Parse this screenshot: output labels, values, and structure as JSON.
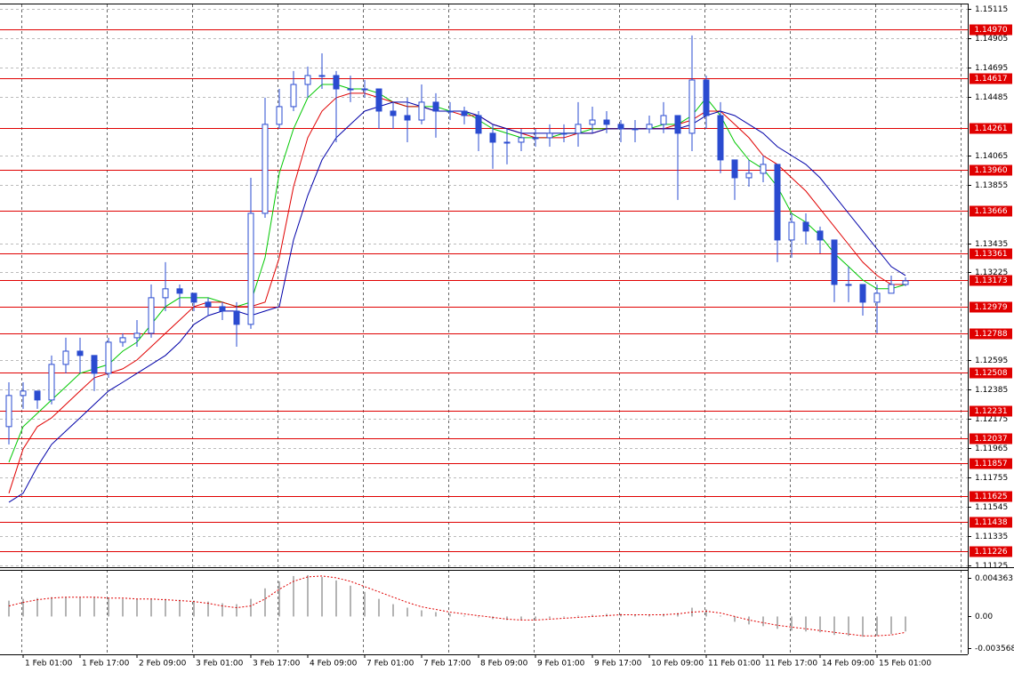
{
  "chart_data": [
    {
      "type": "candlestick",
      "categories": [
        null,
        "1 Feb 01:00",
        null,
        null,
        null,
        "1 Feb 17:00",
        null,
        null,
        null,
        "2 Feb 09:00",
        null,
        null,
        null,
        "3 Feb 01:00",
        null,
        null,
        null,
        "3 Feb 17:00",
        null,
        null,
        null,
        "4 Feb 09:00",
        null,
        null,
        null,
        "7 Feb 01:00",
        null,
        null,
        null,
        "7 Feb 17:00",
        null,
        null,
        null,
        "8 Feb 09:00",
        null,
        null,
        null,
        "9 Feb 01:00",
        null,
        null,
        null,
        "9 Feb 17:00",
        null,
        null,
        null,
        "10 Feb 09:00",
        null,
        null,
        null,
        "11 Feb 01:00",
        null,
        null,
        null,
        "11 Feb 17:00",
        null,
        null,
        null,
        "14 Feb 09:00",
        null,
        null,
        null,
        "15 Feb 01:00",
        null,
        null
      ],
      "open": [
        1.1212,
        1.12343,
        1.12375,
        1.12311,
        1.12566,
        1.12661,
        1.1263,
        1.12502,
        1.12725,
        1.12757,
        1.12789,
        1.13044,
        1.13108,
        1.13076,
        1.13012,
        1.1298,
        1.12948,
        1.12853,
        1.13649,
        1.14287,
        1.14414,
        1.14573,
        1.14637,
        1.14637,
        1.14541,
        1.14541,
        1.14541,
        1.14382,
        1.1435,
        1.14318,
        1.14446,
        1.14382,
        1.14382,
        1.1435,
        1.14223,
        1.14159,
        1.14159,
        1.14191,
        1.14191,
        1.14223,
        1.14223,
        1.14287,
        1.14318,
        1.14287,
        1.14255,
        1.14255,
        1.14287,
        1.1435,
        1.14223,
        1.14605,
        1.1435,
        1.14032,
        1.13904,
        1.13936,
        1.14,
        1.13458,
        1.13585,
        1.13522,
        1.13458,
        1.13139,
        1.13139,
        1.13012,
        1.13076,
        1.13139
      ],
      "high": [
        1.12438,
        1.12438,
        1.12375,
        1.1263,
        1.12757,
        1.12757,
        1.1263,
        1.12757,
        1.12789,
        1.12884,
        1.13139,
        1.13299,
        1.13139,
        1.13076,
        1.13044,
        1.13012,
        1.13012,
        1.13904,
        1.14478,
        1.14541,
        1.14669,
        1.14701,
        1.14796,
        1.14669,
        1.14637,
        1.14605,
        1.14541,
        1.14446,
        1.14478,
        1.14573,
        1.1451,
        1.14446,
        1.14414,
        1.14382,
        1.14287,
        1.14255,
        1.14255,
        1.14255,
        1.14287,
        1.14287,
        1.14446,
        1.14414,
        1.14382,
        1.14318,
        1.14318,
        1.1435,
        1.14446,
        1.1435,
        1.14924,
        1.14637,
        1.14446,
        1.14032,
        1.14032,
        1.14063,
        1.14,
        1.13649,
        1.13649,
        1.13554,
        1.13458,
        1.13267,
        1.13139,
        1.13139,
        1.13203,
        1.1319
      ],
      "low": [
        1.11992,
        1.12247,
        1.12247,
        1.12279,
        1.12502,
        1.12502,
        1.12375,
        1.1247,
        1.12693,
        1.12693,
        1.12757,
        1.12948,
        1.1298,
        1.12948,
        1.12916,
        1.12884,
        1.12693,
        1.12821,
        1.13617,
        1.14255,
        1.14382,
        1.14478,
        1.14541,
        1.14159,
        1.14446,
        1.14478,
        1.14255,
        1.14255,
        1.14159,
        1.14287,
        1.14191,
        1.14318,
        1.14287,
        1.14095,
        1.13968,
        1.14,
        1.14095,
        1.14127,
        1.14127,
        1.14159,
        1.14127,
        1.14223,
        1.14223,
        1.14159,
        1.14159,
        1.14223,
        1.14223,
        1.13745,
        1.14095,
        1.14255,
        1.13936,
        1.13745,
        1.1384,
        1.13872,
        1.13299,
        1.13331,
        1.13426,
        1.13362,
        1.13012,
        1.13012,
        1.12916,
        1.12789,
        1.13076,
        1.13127
      ],
      "close": [
        1.12343,
        1.12375,
        1.12311,
        1.12566,
        1.12661,
        1.1263,
        1.12502,
        1.12725,
        1.12757,
        1.12789,
        1.13044,
        1.13108,
        1.13076,
        1.13012,
        1.1298,
        1.12948,
        1.12853,
        1.13649,
        1.14287,
        1.14414,
        1.14573,
        1.14637,
        1.14637,
        1.14541,
        1.14541,
        1.14541,
        1.14382,
        1.1435,
        1.14318,
        1.14446,
        1.14382,
        1.14382,
        1.1435,
        1.14223,
        1.14159,
        1.14159,
        1.14191,
        1.14191,
        1.14223,
        1.14223,
        1.14287,
        1.14318,
        1.14287,
        1.14255,
        1.14255,
        1.14287,
        1.1435,
        1.14223,
        1.14605,
        1.1435,
        1.14032,
        1.13904,
        1.13936,
        1.14,
        1.13458,
        1.13585,
        1.13522,
        1.13458,
        1.13139,
        1.13139,
        1.13012,
        1.13076,
        1.13139,
        1.13165
      ],
      "color": "#2a4bd0",
      "series": [
        {
          "color": "#00c800",
          "values": [
            1.11865,
            1.1212,
            1.12215,
            1.12311,
            1.12406,
            1.12502,
            1.12534,
            1.12566,
            1.12661,
            1.12725,
            1.12853,
            1.1298,
            1.13044,
            1.13044,
            1.13044,
            1.13012,
            1.1298,
            1.13012,
            1.13331,
            1.13936,
            1.14255,
            1.14478,
            1.14573,
            1.14573,
            1.14541,
            1.14541,
            1.1451,
            1.14446,
            1.14414,
            1.14414,
            1.14414,
            1.14382,
            1.14382,
            1.14318,
            1.14255,
            1.14223,
            1.14191,
            1.14191,
            1.14191,
            1.14223,
            1.14223,
            1.14255,
            1.14255,
            1.14255,
            1.14255,
            1.14255,
            1.14287,
            1.14287,
            1.1435,
            1.14478,
            1.1435,
            1.14159,
            1.14032,
            1.13968,
            1.1384,
            1.13649,
            1.13585,
            1.1349,
            1.13362,
            1.13267,
            1.13171,
            1.13108,
            1.13108,
            1.13139
          ]
        },
        {
          "color": "#e00000",
          "values": [
            1.11642,
            1.1196,
            1.1212,
            1.12183,
            1.12279,
            1.12375,
            1.1247,
            1.12502,
            1.12534,
            1.12598,
            1.12693,
            1.12789,
            1.12884,
            1.1298,
            1.13012,
            1.13012,
            1.1298,
            1.1298,
            1.13012,
            1.13331,
            1.1384,
            1.14191,
            1.14382,
            1.14478,
            1.1451,
            1.1451,
            1.14478,
            1.14446,
            1.14414,
            1.14414,
            1.14382,
            1.14382,
            1.1435,
            1.1435,
            1.14287,
            1.14255,
            1.14223,
            1.14191,
            1.14191,
            1.14191,
            1.14223,
            1.14223,
            1.14255,
            1.14255,
            1.14255,
            1.14255,
            1.14255,
            1.14287,
            1.14318,
            1.14382,
            1.14382,
            1.14287,
            1.14191,
            1.14063,
            1.14,
            1.13904,
            1.13809,
            1.13681,
            1.13554,
            1.13426,
            1.13299,
            1.13203,
            1.13139,
            1.13139
          ]
        },
        {
          "color": "#0000a8",
          "values": [
            1.11578,
            1.11642,
            1.11833,
            1.11992,
            1.12088,
            1.12183,
            1.12279,
            1.12375,
            1.12438,
            1.12502,
            1.12566,
            1.1263,
            1.12725,
            1.12853,
            1.12916,
            1.12948,
            1.12948,
            1.12916,
            1.12948,
            1.1298,
            1.13458,
            1.13777,
            1.14032,
            1.14191,
            1.14287,
            1.14382,
            1.14414,
            1.14446,
            1.14446,
            1.14414,
            1.14382,
            1.14382,
            1.14382,
            1.1435,
            1.14287,
            1.14255,
            1.14223,
            1.14223,
            1.14223,
            1.14223,
            1.14223,
            1.14223,
            1.14255,
            1.14255,
            1.14255,
            1.14255,
            1.14255,
            1.14255,
            1.14287,
            1.1435,
            1.14382,
            1.1435,
            1.14287,
            1.14223,
            1.14127,
            1.14063,
            1.14,
            1.13904,
            1.13777,
            1.13649,
            1.13522,
            1.13394,
            1.13267,
            1.13203
          ]
        }
      ],
      "levels": [
        {
          "value": 1.1497,
          "label": "1.14970"
        },
        1.14617,
        1.14261,
        {
          "value": 1.1396,
          "label": "1.13960"
        },
        1.13666,
        1.13361,
        1.13173,
        1.12979,
        1.12788,
        1.12508,
        1.12231,
        1.12037,
        1.11857,
        1.11625,
        1.11438,
        1.11226
      ],
      "level_color": "#e00000",
      "ylim": [
        1.11112,
        1.15153
      ],
      "yticks": [
        1.15115,
        1.14905,
        1.14695,
        1.14485,
        1.14065,
        1.13855,
        1.13435,
        1.13225,
        1.12595,
        1.12385,
        1.12175,
        1.11965,
        1.11755,
        1.11545,
        1.11335,
        1.11125
      ],
      "grid": true
    },
    {
      "type": "bar",
      "values": [
        0.0018,
        0.002,
        0.0021,
        0.0022,
        0.0022,
        0.0022,
        0.0022,
        0.0021,
        0.002,
        0.002,
        0.002,
        0.002,
        0.0019,
        0.0018,
        0.0017,
        0.0015,
        0.0014,
        0.002,
        0.0032,
        0.004,
        0.0046,
        0.0047,
        0.0045,
        0.0041,
        0.0035,
        0.0028,
        0.002,
        0.0014,
        0.001,
        0.0007,
        0.0005,
        0.0003,
        0.0001,
        -0.0001,
        -0.0003,
        -0.0004,
        -0.0004,
        -0.0003,
        -0.0002,
        -0.0001,
        0.0001,
        0.0002,
        0.0003,
        0.0003,
        0.0002,
        0.0002,
        0.0003,
        0.0004,
        0.001,
        0.0008,
        0.0001,
        -0.0006,
        -0.0009,
        -0.0011,
        -0.0014,
        -0.0016,
        -0.0017,
        -0.0018,
        -0.0021,
        -0.0022,
        -0.0023,
        -0.0022,
        -0.002,
        -0.0017
      ],
      "color": "#b4b4b4",
      "series": [
        {
          "color": "#e00000",
          "values": [
            0.0012,
            0.0016,
            0.0019,
            0.0021,
            0.0022,
            0.0022,
            0.0022,
            0.0021,
            0.0021,
            0.002,
            0.002,
            0.0019,
            0.0018,
            0.0017,
            0.0015,
            0.0012,
            0.001,
            0.0012,
            0.002,
            0.0031,
            0.004,
            0.0045,
            0.0046,
            0.0044,
            0.004,
            0.0034,
            0.0028,
            0.0022,
            0.0016,
            0.0011,
            0.0008,
            0.0005,
            0.0003,
            0.0001,
            -0.0001,
            -0.0003,
            -0.0004,
            -0.0004,
            -0.0003,
            -0.0002,
            -0.0001,
            0.0,
            0.0001,
            0.0002,
            0.0002,
            0.0002,
            0.0002,
            0.0003,
            0.0005,
            0.0006,
            0.0004,
            0.0,
            -0.0004,
            -0.0007,
            -0.001,
            -0.0012,
            -0.0014,
            -0.0016,
            -0.0018,
            -0.002,
            -0.0022,
            -0.0022,
            -0.0021,
            -0.0018
          ]
        }
      ],
      "ylim": [
        -0.0042,
        0.0053
      ],
      "yticks": [
        0.004363,
        {
          "value": 0,
          "label": "0.00"
        },
        -0.003568
      ]
    }
  ]
}
